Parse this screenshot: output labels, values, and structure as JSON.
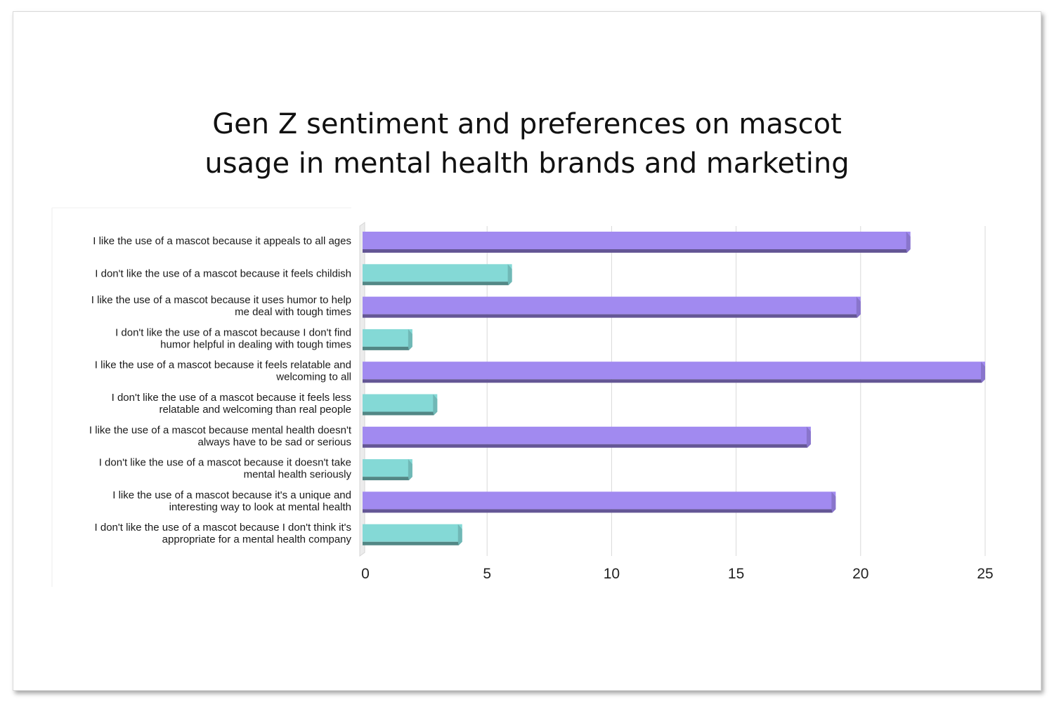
{
  "chart_data": {
    "type": "bar",
    "orientation": "horizontal",
    "style": "3d",
    "title_lines": [
      "Gen Z sentiment and preferences on mascot",
      "usage in mental health brands and marketing"
    ],
    "xlim": [
      0,
      25
    ],
    "x_ticks": [
      "0",
      "5",
      "10",
      "15",
      "20",
      "25"
    ],
    "grid": true,
    "legend": "none",
    "colors": {
      "like": "#a18af0",
      "dislike": "#84d9d6"
    },
    "bars": [
      {
        "label": [
          "I like the use of a mascot because it appeals to all ages"
        ],
        "value": 22,
        "group": "like"
      },
      {
        "label": [
          "I don't like the use of a mascot because it feels childish"
        ],
        "value": 6,
        "group": "dislike"
      },
      {
        "label": [
          "I like the use of a mascot because it uses humor to help",
          "me deal with tough times"
        ],
        "value": 20,
        "group": "like"
      },
      {
        "label": [
          "I don't like the use of a mascot because I don't find",
          "humor helpful in dealing with tough times"
        ],
        "value": 2,
        "group": "dislike"
      },
      {
        "label": [
          "I like the use of a mascot because it feels relatable and",
          "welcoming to all"
        ],
        "value": 25,
        "group": "like"
      },
      {
        "label": [
          "I don't like the use of a mascot because it feels less",
          "relatable and welcoming than real people"
        ],
        "value": 3,
        "group": "dislike"
      },
      {
        "label": [
          "I like the use of a mascot because mental health doesn't",
          "always have to be sad or serious"
        ],
        "value": 18,
        "group": "like"
      },
      {
        "label": [
          "I don't like the use of a mascot because it doesn't take",
          "mental health seriously"
        ],
        "value": 2,
        "group": "dislike"
      },
      {
        "label": [
          "I like the use of a mascot because it's a unique and",
          "interesting way to look at mental health"
        ],
        "value": 19,
        "group": "like"
      },
      {
        "label": [
          "I don't like the use of a mascot because I don't think it's",
          "appropriate for a mental health company"
        ],
        "value": 4,
        "group": "dislike"
      }
    ]
  }
}
